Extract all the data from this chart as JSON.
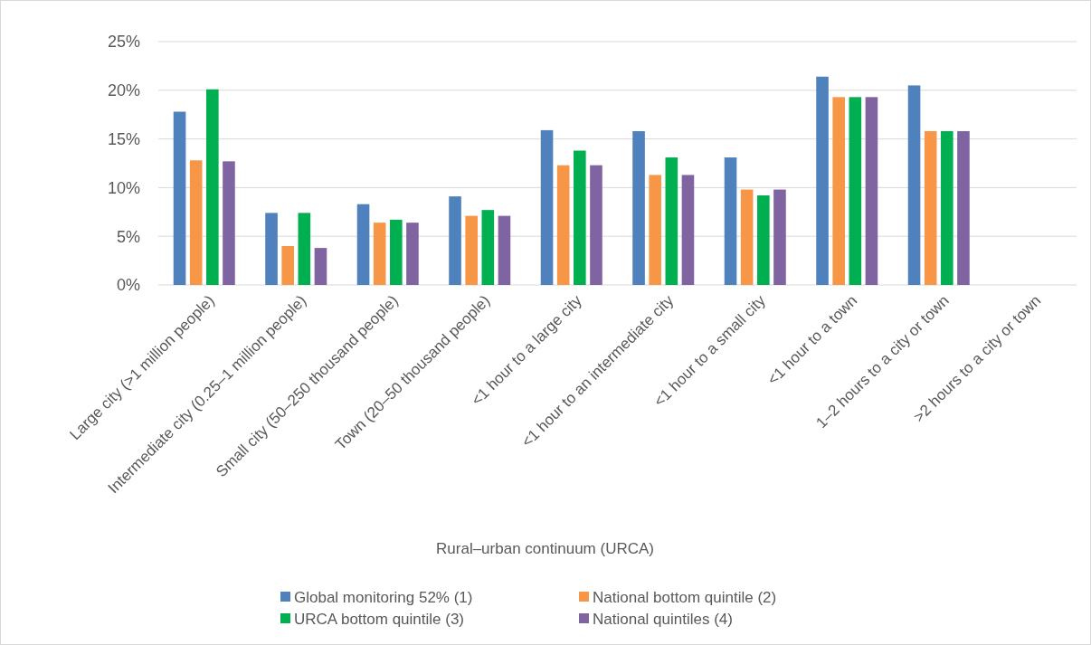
{
  "chart_data": {
    "type": "bar",
    "xlabel": "Rural–urban continuum (URCA)",
    "categories": [
      "Large city (>1 million people)",
      "Intermediate city (0.25–1 million people)",
      "Small city (50–250 thousand people)",
      "Town (20–50 thousand people)",
      "<1 hour to a large city",
      "<1 hour to an intermediate city",
      "<1 hour to a small city",
      "<1 hour to a town",
      "1–2 hours to a city or town",
      ">2 hours to a city or town"
    ],
    "series": [
      {
        "name": "Global monitoring 52% (1)",
        "color": "#4f81bd",
        "values": [
          17.8,
          7.4,
          8.3,
          9.1,
          15.9,
          15.8,
          13.1,
          21.4,
          20.5,
          null
        ]
      },
      {
        "name": "National bottom quintile (2)",
        "color": "#f79646",
        "values": [
          12.8,
          4.0,
          6.4,
          7.1,
          12.3,
          11.3,
          9.8,
          19.3,
          15.8,
          null
        ]
      },
      {
        "name": "URCA bottom quintile (3)",
        "color": "#00b050",
        "values": [
          20.1,
          7.4,
          6.7,
          7.7,
          13.8,
          13.1,
          9.2,
          19.3,
          15.8,
          null
        ]
      },
      {
        "name": "National quintiles (4)",
        "color": "#8064a2",
        "values": [
          12.7,
          3.8,
          6.4,
          7.1,
          12.3,
          11.3,
          9.8,
          19.3,
          15.8,
          null
        ]
      }
    ],
    "ylim": [
      0,
      25
    ],
    "yticks": [
      {
        "value": 0,
        "label": "0%"
      },
      {
        "value": 5,
        "label": "5%"
      },
      {
        "value": 10,
        "label": "10%"
      },
      {
        "value": 15,
        "label": "15%"
      },
      {
        "value": 20,
        "label": "20%"
      },
      {
        "value": 25,
        "label": "25%"
      }
    ],
    "grid": "y",
    "legend": "bottom"
  }
}
